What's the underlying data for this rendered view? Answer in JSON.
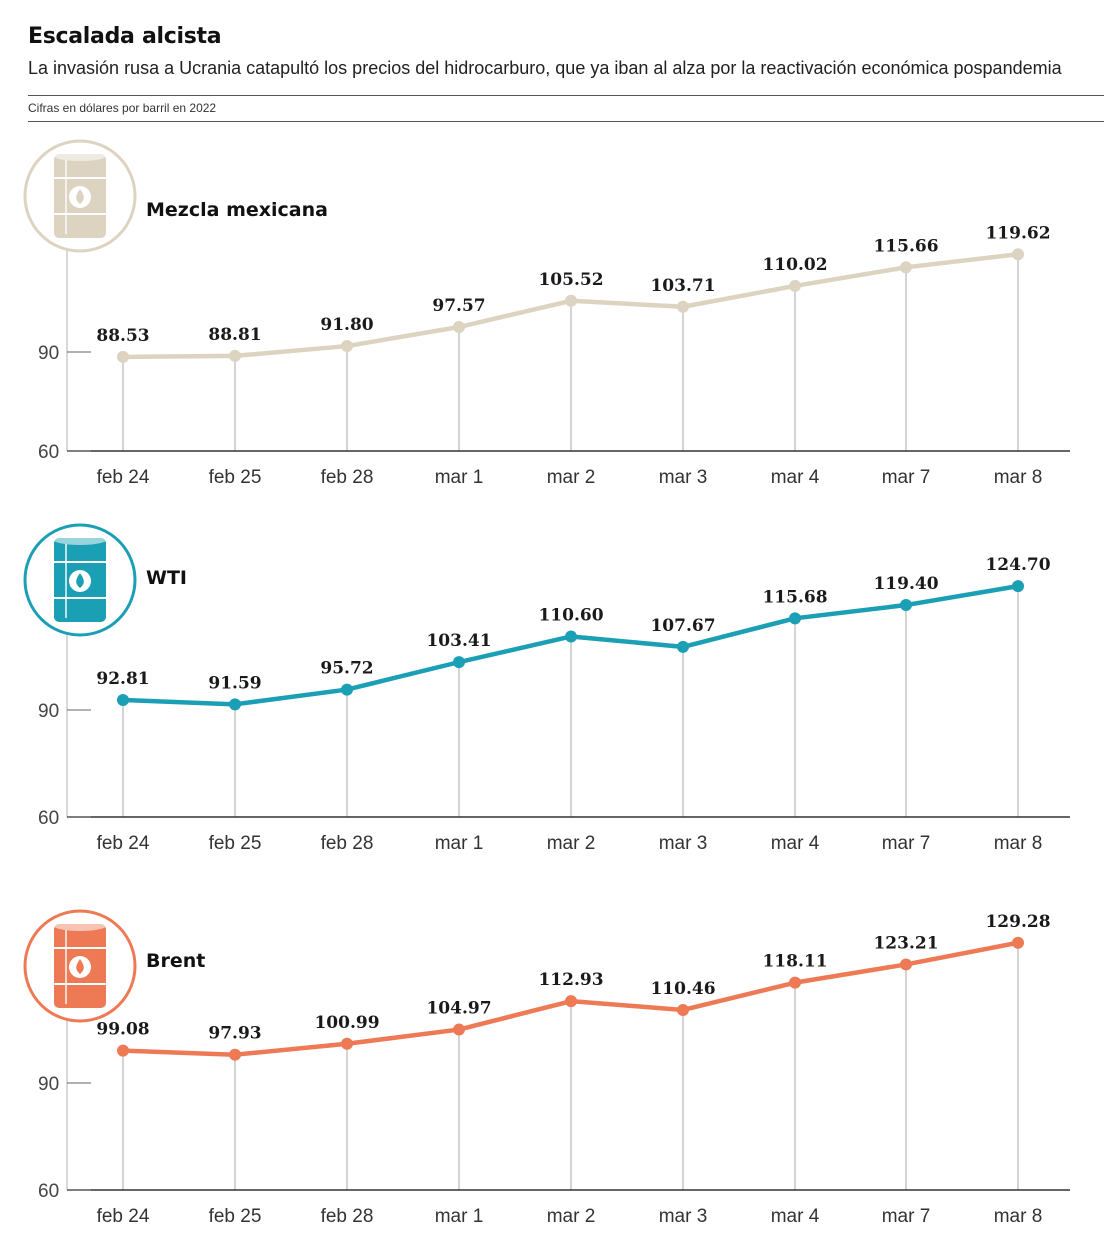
{
  "title": "Escalada alcista",
  "subtitle": "La invasión rusa a Ucrania catapultó los precios del hidrocarburo, que ya iban al alza por la reactivación económica pospandemia",
  "units_note": "Cifras en dólares por barril en 2022",
  "colors": {
    "mezcla": "#dcd3c1",
    "wti": "#1b9fb5",
    "brent": "#ee7a55",
    "stem": "#bdbdbd",
    "axis": "#333333"
  },
  "chart_data": [
    {
      "type": "line",
      "name": "Mezcla mexicana",
      "icon": "oil-barrel-icon",
      "color_key": "mezcla",
      "categories": [
        "feb 24",
        "feb 25",
        "feb 28",
        "mar 1",
        "mar 2",
        "mar 3",
        "mar 4",
        "mar 7",
        "mar 8"
      ],
      "values": [
        88.53,
        88.81,
        91.8,
        97.57,
        105.52,
        103.71,
        110.02,
        115.66,
        119.62
      ],
      "value_labels": [
        "88.53",
        "88.81",
        "91.80",
        "97.57",
        "105.52",
        "103.71",
        "110.02",
        "115.66",
        "119.62"
      ],
      "y_ticks": [
        60,
        90
      ],
      "y_tick_labels": [
        "60",
        "90"
      ],
      "ylim": [
        60,
        125
      ]
    },
    {
      "type": "line",
      "name": "WTI",
      "icon": "oil-barrel-icon",
      "color_key": "wti",
      "categories": [
        "feb 24",
        "feb 25",
        "feb 28",
        "mar 1",
        "mar 2",
        "mar 3",
        "mar 4",
        "mar 7",
        "mar 8"
      ],
      "values": [
        92.81,
        91.59,
        95.72,
        103.41,
        110.6,
        107.67,
        115.68,
        119.4,
        124.7
      ],
      "value_labels": [
        "92.81",
        "91.59",
        "95.72",
        "103.41",
        "110.60",
        "107.67",
        "115.68",
        "119.40",
        "124.70"
      ],
      "y_ticks": [
        60,
        90
      ],
      "y_tick_labels": [
        "60",
        "90"
      ],
      "ylim": [
        60,
        125
      ]
    },
    {
      "type": "line",
      "name": "Brent",
      "icon": "oil-barrel-icon",
      "color_key": "brent",
      "categories": [
        "feb 24",
        "feb 25",
        "feb 28",
        "mar 1",
        "mar 2",
        "mar 3",
        "mar 4",
        "mar 7",
        "mar 8"
      ],
      "values": [
        99.08,
        97.93,
        100.99,
        104.97,
        112.93,
        110.46,
        118.11,
        123.21,
        129.28
      ],
      "value_labels": [
        "99.08",
        "97.93",
        "100.99",
        "104.97",
        "112.93",
        "110.46",
        "118.11",
        "123.21",
        "129.28"
      ],
      "y_ticks": [
        60,
        90
      ],
      "y_tick_labels": [
        "60",
        "90"
      ],
      "ylim": [
        60,
        130
      ]
    }
  ]
}
